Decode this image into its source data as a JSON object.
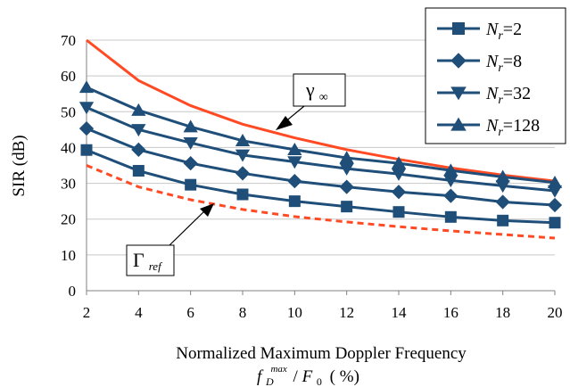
{
  "chart_data": {
    "type": "line",
    "title": "",
    "xlabel": "Normalized Maximum Doppler Frequency",
    "xlabel_formula": {
      "f": "f",
      "sub_D": "D",
      "sup_max": "max",
      "slash": "/",
      "F": "F",
      "sub_0": "0",
      "unit": "( %)"
    },
    "ylabel": "SIR (dB)",
    "xlim": [
      2,
      20
    ],
    "ylim": [
      0,
      70
    ],
    "x_ticks": [
      2,
      4,
      6,
      8,
      10,
      12,
      14,
      16,
      18,
      20
    ],
    "y_ticks": [
      0,
      10,
      20,
      30,
      40,
      50,
      60,
      70
    ],
    "grid": "horizontal",
    "legend_position": "top-right",
    "x": [
      2,
      4,
      6,
      8,
      10,
      12,
      14,
      16,
      18,
      20
    ],
    "series": [
      {
        "name": "N_r=2",
        "legend_var": "N",
        "legend_sub": "r",
        "legend_value": "=2",
        "marker": "square",
        "color": "#1f4e79",
        "values": [
          39.3,
          33.5,
          29.6,
          26.9,
          25.0,
          23.5,
          22.0,
          20.6,
          19.6,
          19.0
        ]
      },
      {
        "name": "N_r=8",
        "legend_var": "N",
        "legend_sub": "r",
        "legend_value": "=8",
        "marker": "diamond",
        "color": "#1f4e79",
        "values": [
          45.3,
          39.4,
          35.6,
          32.8,
          30.6,
          29.0,
          27.6,
          26.5,
          24.8,
          23.9
        ]
      },
      {
        "name": "N_r=32",
        "legend_var": "N",
        "legend_sub": "r",
        "legend_value": "=32",
        "marker": "triangle-down",
        "color": "#1f4e79",
        "values": [
          51.2,
          45.0,
          41.3,
          37.9,
          36.0,
          34.1,
          32.6,
          30.8,
          29.3,
          27.9
        ]
      },
      {
        "name": "N_r=128",
        "legend_var": "N",
        "legend_sub": "r",
        "legend_value": "=128",
        "marker": "triangle-up",
        "color": "#1f4e79",
        "values": [
          56.8,
          50.4,
          45.8,
          41.9,
          39.4,
          37.1,
          35.6,
          33.6,
          31.8,
          30.2
        ]
      }
    ],
    "bounds": [
      {
        "label_main": "γ",
        "label_sub": "∞",
        "style": "solid",
        "color": "#ff4a24",
        "values": [
          70.0,
          58.7,
          51.7,
          46.5,
          42.7,
          39.4,
          36.7,
          34.3,
          32.3,
          30.6
        ]
      },
      {
        "label_main": "Γ",
        "label_sub": "ref",
        "style": "dashed",
        "color": "#ff4a24",
        "values": [
          35.0,
          29.0,
          25.4,
          22.7,
          20.7,
          19.2,
          17.9,
          16.7,
          15.7,
          14.7
        ]
      }
    ]
  }
}
